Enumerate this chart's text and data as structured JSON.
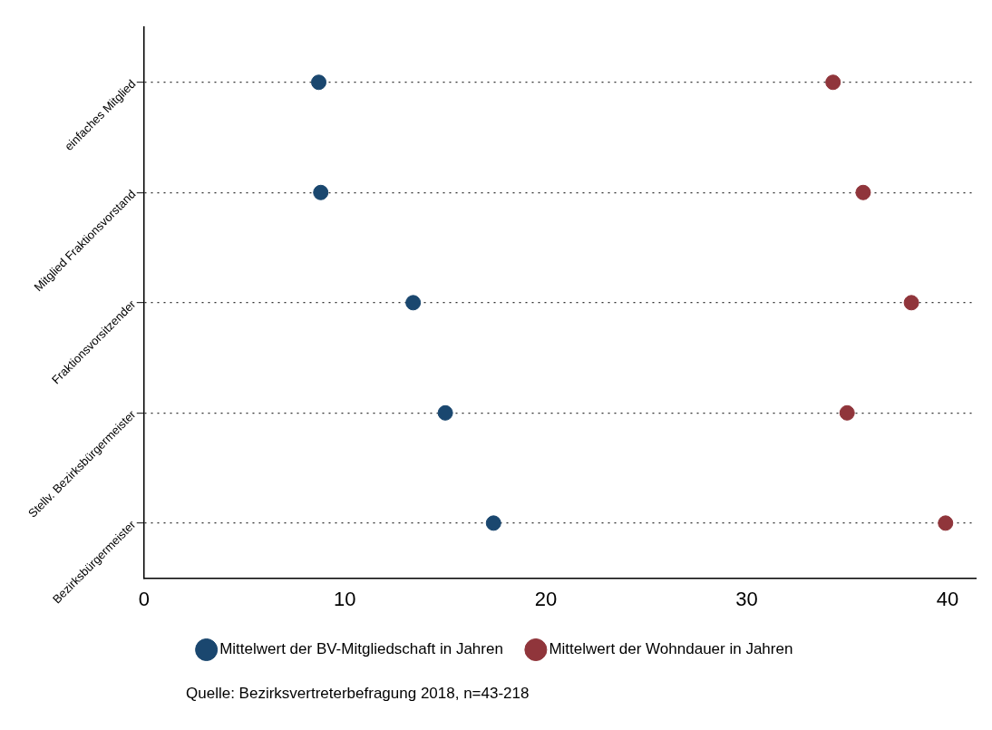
{
  "chart_data": {
    "type": "scatter",
    "orientation": "horizontal",
    "categories": [
      "einfaches Mitglied",
      "Mitglied Fraktionsvorstand",
      "Fraktionsvorsitzender",
      "Stellv. Bezirksbürgermeister",
      "Bezirksbürgermeister"
    ],
    "series": [
      {
        "name": "Mittelwert der BV-Mitgliedschaft in Jahren",
        "color": "#1a476f",
        "values": [
          8.7,
          8.8,
          13.4,
          15.0,
          17.4
        ]
      },
      {
        "name": "Mittelwert der Wohndauer in Jahren",
        "color": "#90353b",
        "values": [
          34.3,
          35.8,
          38.2,
          35.0,
          39.9
        ]
      }
    ],
    "xlim": [
      0,
      41.4
    ],
    "xticks": [
      0,
      10,
      20,
      30,
      40
    ],
    "grid": "y",
    "marker": "circle",
    "legend": "bottom",
    "annotations": [
      "Quelle: Bezirksvertreterbefragung 2018, n=43-218"
    ]
  }
}
